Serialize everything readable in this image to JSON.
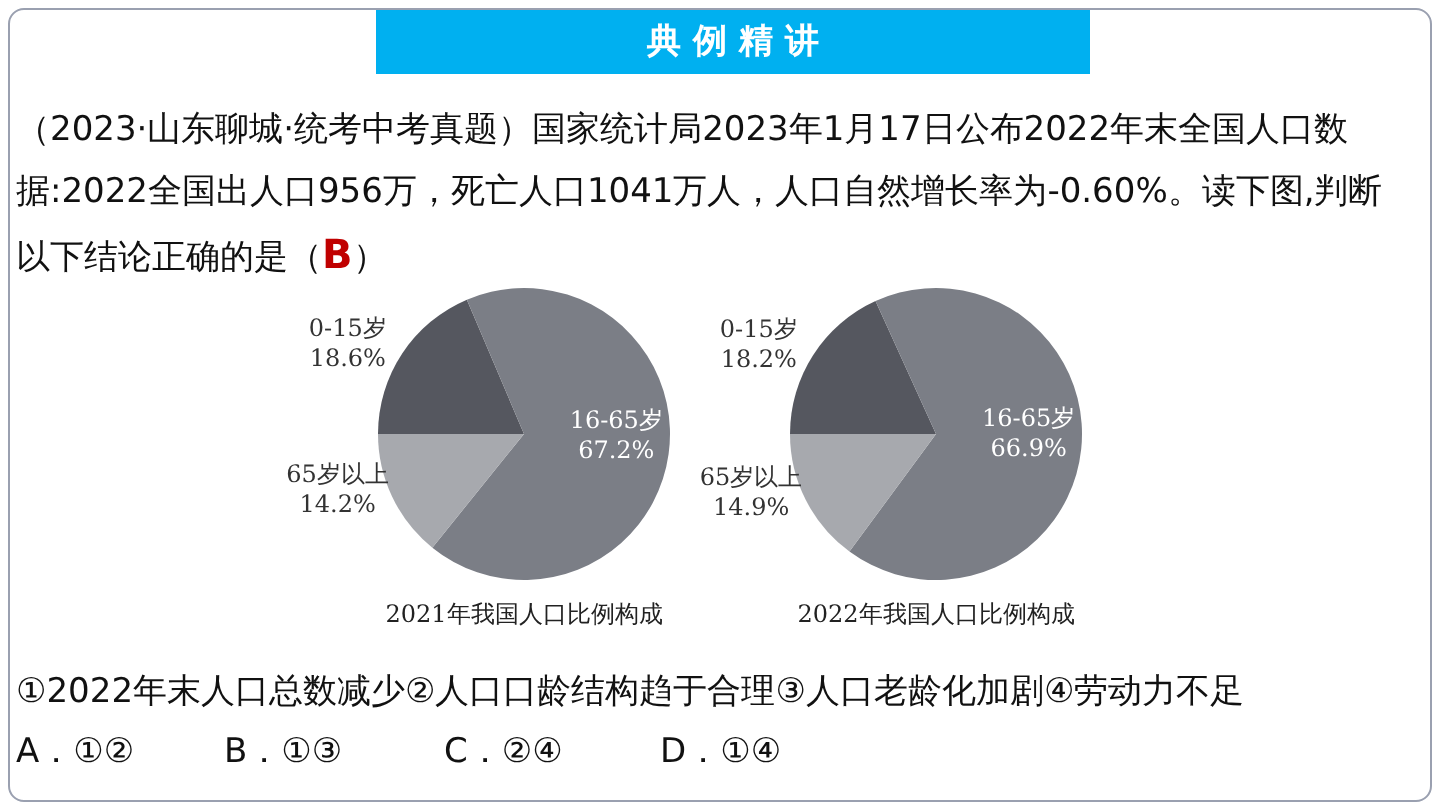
{
  "chart_data": [
    {
      "type": "other",
      "title": "典 例 精 讲",
      "annotations": [
        "（2023·山东聊城·统考中考真题）国家统计局2023年1月17日公布2022年末全国人口数据:2022全国出人口956万，死亡人口1041万人，人口自然增长率为-0.60%。读下图,判断以下结论正确的是（",
        "B",
        "）",
        "①2022年末人口总数减少②人口口龄结构趋于合理③人口老龄化加剧④劳动力不足",
        "A．①②",
        "B．①③",
        "C．②④",
        "D．①④"
      ]
    },
    {
      "type": "pie",
      "title": "2021年我国人口比例构成",
      "categories": [
        "0-15岁",
        "16-65岁",
        "65岁以上"
      ],
      "values": [
        18.6,
        67.2,
        14.2
      ],
      "value_labels": [
        "18.6%",
        "67.2%",
        "14.2%"
      ],
      "colors": [
        "#55575f",
        "#7b7e86",
        "#a7a9ae"
      ]
    },
    {
      "type": "pie",
      "title": "2022年我国人口比例构成",
      "categories": [
        "0-15岁",
        "16-65岁",
        "65岁以上"
      ],
      "values": [
        18.2,
        66.9,
        14.9
      ],
      "value_labels": [
        "18.2%",
        "66.9%",
        "14.9%"
      ],
      "colors": [
        "#55575f",
        "#7b7e86",
        "#a7a9ae"
      ]
    }
  ]
}
